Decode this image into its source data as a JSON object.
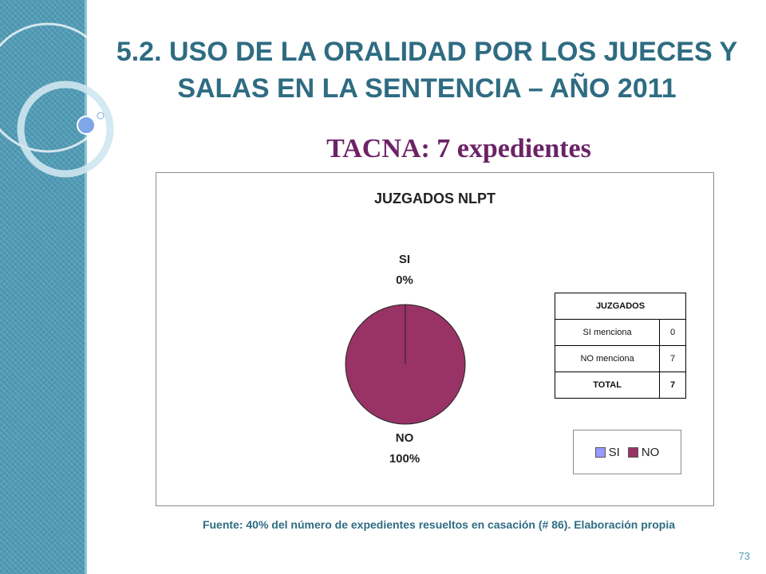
{
  "slide": {
    "title": "5.2. USO DE LA ORALIDAD POR LOS JUECES Y SALAS EN LA SENTENCIA – AÑO 2011",
    "subtitle": "TACNA: 7 expedientes",
    "source": "Fuente: 40% del número de expedientes resueltos en casación (# 86). Elaboración propia",
    "page_number": "73"
  },
  "colors": {
    "title": "#2e6c82",
    "subtitle": "#6b2366",
    "si": "#9999ff",
    "no": "#993366",
    "band": "#4f9bb6"
  },
  "chart_data": {
    "type": "pie",
    "title": "JUZGADOS NLPT",
    "categories": [
      "SI",
      "NO"
    ],
    "values": [
      0,
      7
    ],
    "percent_labels": [
      "0%",
      "100%"
    ],
    "colors": [
      "#9999ff",
      "#993366"
    ],
    "legend_position": "bottom-right",
    "table": {
      "header": "JUZGADOS",
      "rows": [
        {
          "label": "SI menciona",
          "value": "0"
        },
        {
          "label": "NO menciona",
          "value": "7"
        },
        {
          "label": "TOTAL",
          "value": "7"
        }
      ]
    },
    "legend": [
      "SI",
      "NO"
    ]
  }
}
